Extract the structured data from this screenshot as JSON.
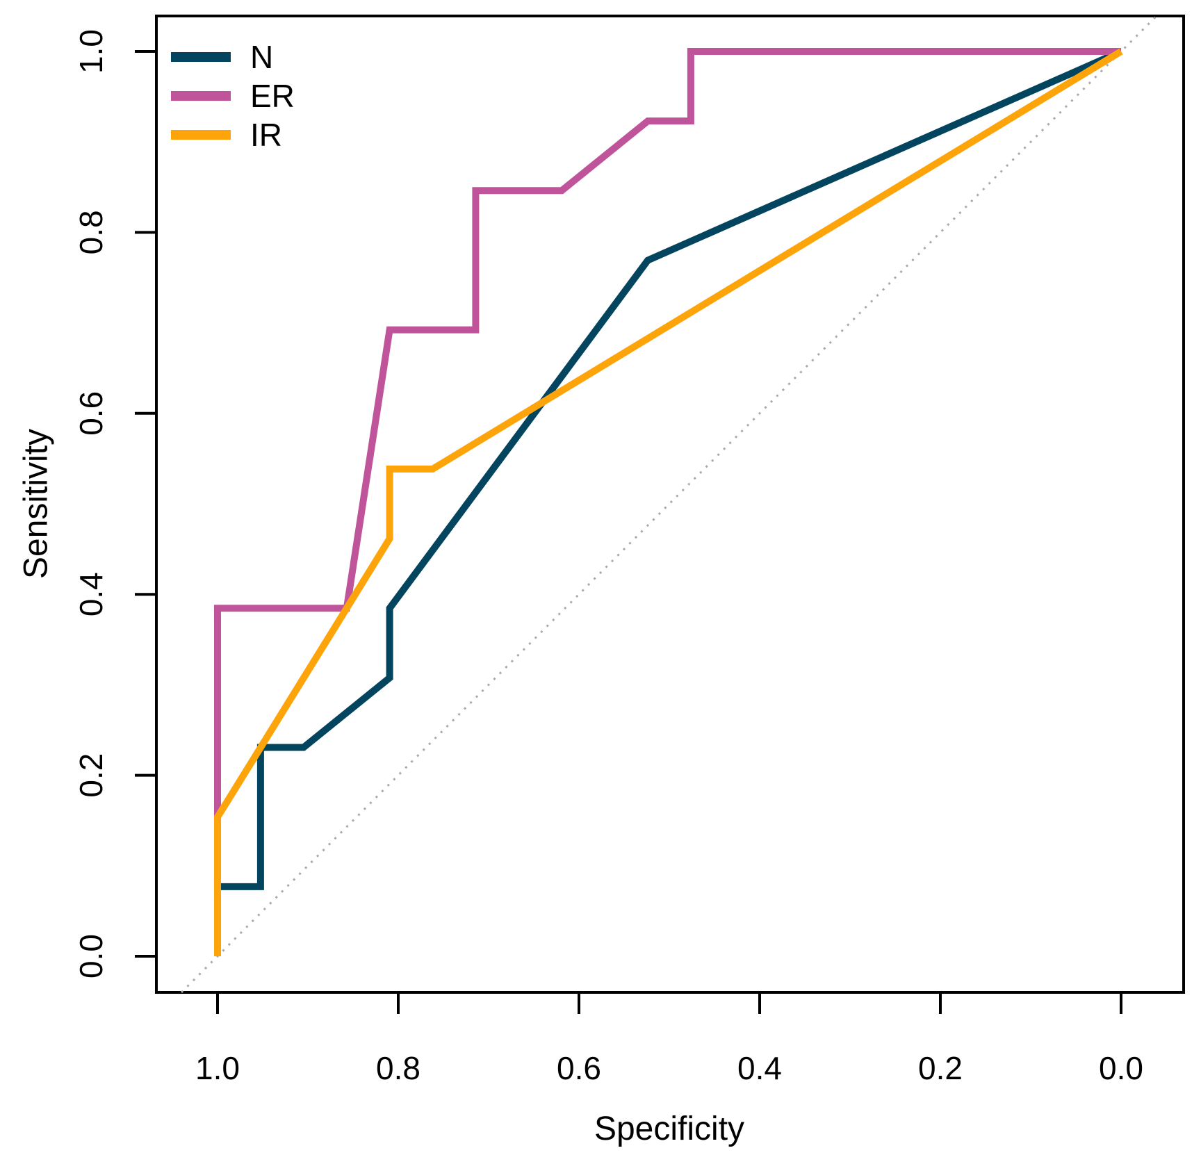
{
  "figure": {
    "background": "#ffffff",
    "text_color": "#000000"
  },
  "chart_data": {
    "type": "line",
    "subtype": "roc-curve",
    "title": "",
    "xlabel": "Specificity",
    "ylabel": "Sensitivity",
    "x_axis_reversed": true,
    "grid": false,
    "legend_position": "top-left",
    "x_ticks": [
      1.0,
      0.8,
      0.6,
      0.4,
      0.2,
      0.0
    ],
    "x_tick_labels": [
      "1.0",
      "0.8",
      "0.6",
      "0.4",
      "0.2",
      "0.0"
    ],
    "y_ticks": [
      0.0,
      0.2,
      0.4,
      0.6,
      0.8,
      1.0
    ],
    "y_tick_labels": [
      "0.0",
      "0.2",
      "0.4",
      "0.6",
      "0.8",
      "1.0"
    ],
    "xlim": [
      1.0,
      0.0
    ],
    "ylim": [
      0.0,
      1.0
    ],
    "series": [
      {
        "name": "N",
        "color": "#03445f",
        "points": [
          [
            1.0,
            0.0
          ],
          [
            1.0,
            0.0769
          ],
          [
            0.9524,
            0.0769
          ],
          [
            0.9524,
            0.2308
          ],
          [
            0.9048,
            0.2308
          ],
          [
            0.8095,
            0.3077
          ],
          [
            0.8095,
            0.3846
          ],
          [
            0.5238,
            0.7692
          ],
          [
            0.0,
            1.0
          ]
        ]
      },
      {
        "name": "ER",
        "color": "#c0549b",
        "points": [
          [
            1.0,
            0.0
          ],
          [
            1.0,
            0.3846
          ],
          [
            0.8571,
            0.3846
          ],
          [
            0.8095,
            0.6923
          ],
          [
            0.7143,
            0.6923
          ],
          [
            0.7143,
            0.8462
          ],
          [
            0.619,
            0.8462
          ],
          [
            0.5238,
            0.9231
          ],
          [
            0.4762,
            0.9231
          ],
          [
            0.4762,
            1.0
          ],
          [
            0.0,
            1.0
          ]
        ]
      },
      {
        "name": "IR",
        "color": "#fda40b",
        "points": [
          [
            1.0,
            0.0
          ],
          [
            1.0,
            0.1538
          ],
          [
            0.8571,
            0.3846
          ],
          [
            0.8095,
            0.4615
          ],
          [
            0.8095,
            0.5385
          ],
          [
            0.7619,
            0.5385
          ],
          [
            0.0,
            1.0
          ]
        ]
      }
    ],
    "reference_line": {
      "points": [
        [
          1.0,
          0.0
        ],
        [
          0.0,
          1.0
        ]
      ],
      "color": "#aaaaaa",
      "style": "dotted"
    }
  }
}
